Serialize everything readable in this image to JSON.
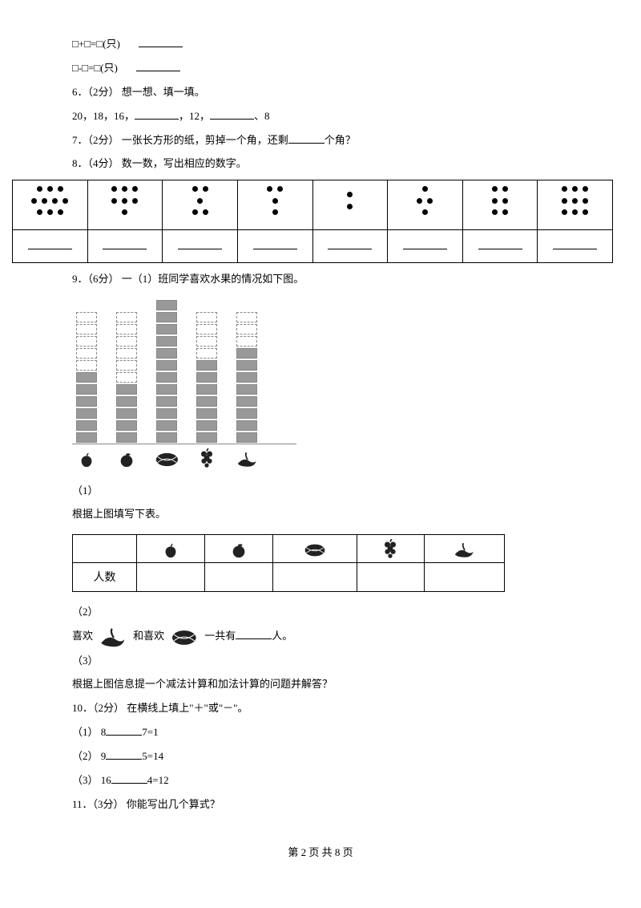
{
  "q5": {
    "line1": "□+□=□(只)",
    "line2": "□-□=□(只)"
  },
  "q6": {
    "prompt": "6．（2分） 想一想、填一填。",
    "seq_a": "20，18，16，",
    "seq_b": "，12，",
    "seq_c": "、8"
  },
  "q7": {
    "full_a": "7．（2分） 一张长方形的纸，剪掉一个角，还剩",
    "full_b": "个角？"
  },
  "q8": {
    "prompt": "8．（4分） 数一数，写出相应的数字。",
    "dot_config": [
      {
        "rows": [
          3,
          4,
          3
        ]
      },
      {
        "rows": [
          3,
          3,
          1
        ]
      },
      {
        "rows": [
          2,
          1,
          2
        ]
      },
      {
        "rows": [
          2,
          1,
          1
        ]
      },
      {
        "rows": [
          1,
          1
        ]
      },
      {
        "rows": [
          1,
          2,
          1
        ]
      },
      {
        "rows": [
          2,
          2,
          2
        ]
      },
      {
        "rows": [
          3,
          3,
          3
        ]
      }
    ]
  },
  "q9": {
    "prompt": "9．（6分） 一（1）班同学喜欢水果的情况如下图。",
    "bars": [
      {
        "total": 11,
        "filled": 6,
        "fruit": "apple"
      },
      {
        "total": 11,
        "filled": 5,
        "fruit": "orange"
      },
      {
        "total": 12,
        "filled": 12,
        "fruit": "watermelon"
      },
      {
        "total": 11,
        "filled": 7,
        "fruit": "grape"
      },
      {
        "total": 11,
        "filled": 8,
        "fruit": "peach"
      }
    ],
    "sub1_num": "（1）",
    "sub1": "根据上图填写下表。",
    "table_label": "人数",
    "sub2_num": "（2）",
    "sub2_a": "喜欢",
    "sub2_b": "和喜欢",
    "sub2_c": "一共有",
    "sub2_d": "人。",
    "sub3_num": "（3）",
    "sub3": "根据上图信息提一个减法计算和加法计算的问题并解答？"
  },
  "q10": {
    "prompt": "10．（2分） 在横线上填上\"＋\"或\"－\"。",
    "items": [
      {
        "label": "（1）",
        "a": "8",
        "b": "7=1"
      },
      {
        "label": "（2）",
        "a": "9",
        "b": "5=14"
      },
      {
        "label": "（3）",
        "a": "16",
        "b": "4=12"
      }
    ]
  },
  "q11": {
    "prompt": "11．（3分） 你能写出几个算式？"
  },
  "footer": {
    "text": "第 2 页 共 8 页"
  },
  "fruit_colors": {
    "dark": "#222",
    "mid": "#555"
  }
}
